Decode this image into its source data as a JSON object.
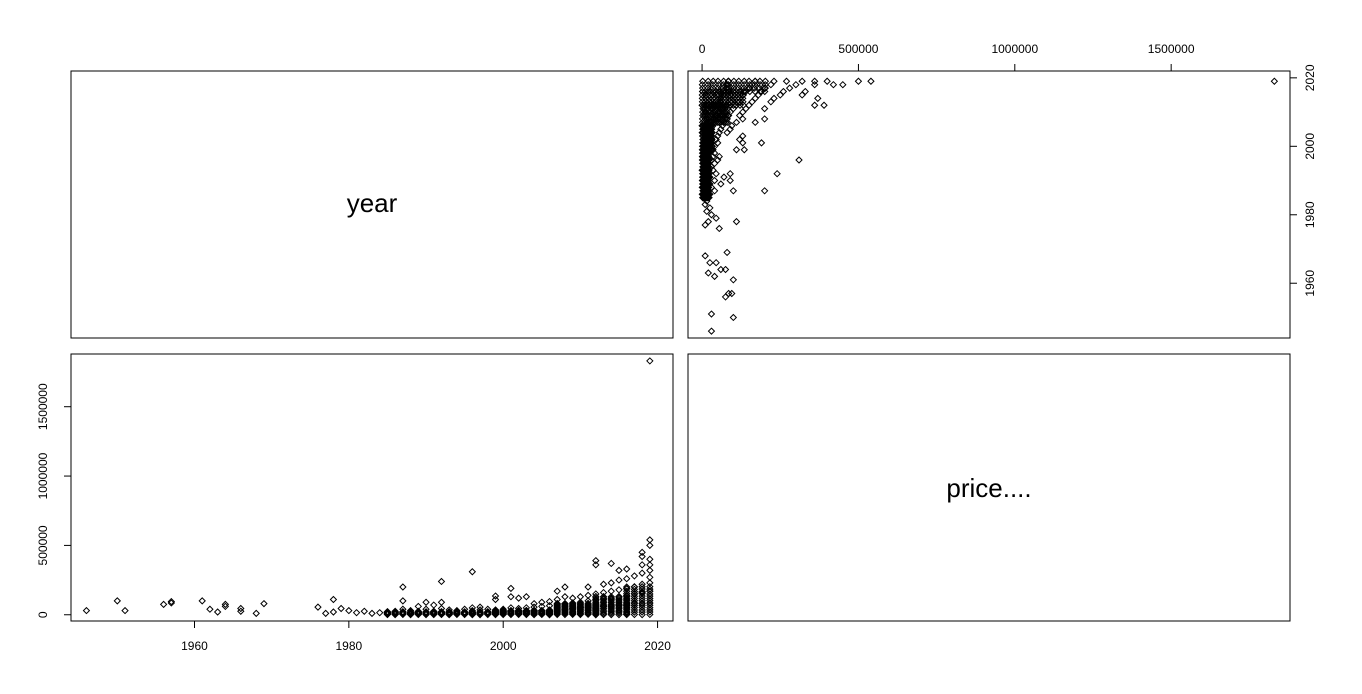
{
  "chart_data": {
    "type": "scatter",
    "variables": [
      "year",
      "price...."
    ],
    "axes": {
      "year": {
        "range": [
          1944,
          2022
        ],
        "ticks": [
          1960,
          1980,
          2000,
          2020
        ],
        "tick_labels": [
          "1960",
          "1980",
          "2000",
          "2020"
        ]
      },
      "price": {
        "range": [
          -45000,
          1880000
        ],
        "ticks": [
          0,
          500000,
          1000000,
          1500000
        ],
        "tick_labels": [
          "0",
          "500000",
          "1000000",
          "1500000"
        ]
      }
    },
    "grid": false,
    "points": [
      [
        1946,
        30000
      ],
      [
        1950,
        100000
      ],
      [
        1951,
        30000
      ],
      [
        1956,
        75000
      ],
      [
        1957,
        85000
      ],
      [
        1957,
        95000
      ],
      [
        1961,
        100000
      ],
      [
        1962,
        40000
      ],
      [
        1963,
        20000
      ],
      [
        1964,
        60000
      ],
      [
        1964,
        75000
      ],
      [
        1966,
        25000
      ],
      [
        1966,
        45000
      ],
      [
        1968,
        10000
      ],
      [
        1969,
        80000
      ],
      [
        1976,
        55000
      ],
      [
        1977,
        10000
      ],
      [
        1978,
        20000
      ],
      [
        1978,
        110000
      ],
      [
        1979,
        45000
      ],
      [
        1980,
        30000
      ],
      [
        1981,
        15000
      ],
      [
        1982,
        25000
      ],
      [
        1983,
        10000
      ],
      [
        1984,
        15000
      ],
      [
        1985,
        20000
      ],
      [
        1986,
        25000
      ],
      [
        1987,
        40000
      ],
      [
        1987,
        100000
      ],
      [
        1987,
        200000
      ],
      [
        1988,
        15000
      ],
      [
        1988,
        30000
      ],
      [
        1989,
        25000
      ],
      [
        1989,
        60000
      ],
      [
        1990,
        10000
      ],
      [
        1990,
        40000
      ],
      [
        1990,
        90000
      ],
      [
        1991,
        25000
      ],
      [
        1991,
        70000
      ],
      [
        1992,
        15000
      ],
      [
        1992,
        45000
      ],
      [
        1992,
        90000
      ],
      [
        1992,
        240000
      ],
      [
        1993,
        20000
      ],
      [
        1993,
        35000
      ],
      [
        1994,
        15000
      ],
      [
        1994,
        30000
      ],
      [
        1995,
        20000
      ],
      [
        1995,
        40000
      ],
      [
        1996,
        15000
      ],
      [
        1996,
        30000
      ],
      [
        1996,
        50000
      ],
      [
        1996,
        310000
      ],
      [
        1997,
        15000
      ],
      [
        1997,
        35000
      ],
      [
        1997,
        55000
      ],
      [
        1998,
        20000
      ],
      [
        1998,
        40000
      ],
      [
        1999,
        15000
      ],
      [
        1999,
        35000
      ],
      [
        1999,
        110000
      ],
      [
        1999,
        135000
      ],
      [
        2000,
        20000
      ],
      [
        2000,
        40000
      ],
      [
        2001,
        25000
      ],
      [
        2001,
        50000
      ],
      [
        2001,
        130000
      ],
      [
        2001,
        190000
      ],
      [
        2002,
        20000
      ],
      [
        2002,
        45000
      ],
      [
        2002,
        120000
      ],
      [
        2003,
        25000
      ],
      [
        2003,
        50000
      ],
      [
        2003,
        130000
      ],
      [
        2004,
        30000
      ],
      [
        2004,
        55000
      ],
      [
        2004,
        80000
      ],
      [
        2005,
        30000
      ],
      [
        2005,
        60000
      ],
      [
        2005,
        90000
      ],
      [
        2006,
        35000
      ],
      [
        2006,
        65000
      ],
      [
        2006,
        95000
      ],
      [
        2007,
        30000
      ],
      [
        2007,
        70000
      ],
      [
        2007,
        110000
      ],
      [
        2007,
        170000
      ],
      [
        2008,
        40000
      ],
      [
        2008,
        80000
      ],
      [
        2008,
        130000
      ],
      [
        2008,
        200000
      ],
      [
        2009,
        45000
      ],
      [
        2009,
        85000
      ],
      [
        2009,
        120000
      ],
      [
        2010,
        50000
      ],
      [
        2010,
        90000
      ],
      [
        2010,
        130000
      ],
      [
        2011,
        50000
      ],
      [
        2011,
        100000
      ],
      [
        2011,
        140000
      ],
      [
        2011,
        200000
      ],
      [
        2012,
        55000
      ],
      [
        2012,
        110000
      ],
      [
        2012,
        150000
      ],
      [
        2012,
        360000
      ],
      [
        2012,
        390000
      ],
      [
        2013,
        60000
      ],
      [
        2013,
        120000
      ],
      [
        2013,
        160000
      ],
      [
        2013,
        220000
      ],
      [
        2014,
        60000
      ],
      [
        2014,
        120000
      ],
      [
        2014,
        170000
      ],
      [
        2014,
        230000
      ],
      [
        2014,
        370000
      ],
      [
        2015,
        70000
      ],
      [
        2015,
        130000
      ],
      [
        2015,
        180000
      ],
      [
        2015,
        250000
      ],
      [
        2015,
        320000
      ],
      [
        2016,
        75000
      ],
      [
        2016,
        140000
      ],
      [
        2016,
        190000
      ],
      [
        2016,
        260000
      ],
      [
        2016,
        330000
      ],
      [
        2017,
        80000
      ],
      [
        2017,
        150000
      ],
      [
        2017,
        200000
      ],
      [
        2017,
        280000
      ],
      [
        2018,
        80000
      ],
      [
        2018,
        160000
      ],
      [
        2018,
        220000
      ],
      [
        2018,
        300000
      ],
      [
        2018,
        360000
      ],
      [
        2018,
        420000
      ],
      [
        2018,
        450000
      ],
      [
        2019,
        85000
      ],
      [
        2019,
        170000
      ],
      [
        2019,
        230000
      ],
      [
        2019,
        270000
      ],
      [
        2019,
        320000
      ],
      [
        2019,
        360000
      ],
      [
        2019,
        400000
      ],
      [
        2019,
        500000
      ],
      [
        2019,
        540000
      ],
      [
        2019,
        1830000
      ]
    ],
    "dense_bands": [
      {
        "year_min": 1985,
        "year_max": 1998,
        "price_max": 20000
      },
      {
        "year_min": 1999,
        "year_max": 2006,
        "price_max": 30000
      },
      {
        "year_min": 2007,
        "year_max": 2012,
        "price_max": 80000
      },
      {
        "year_min": 2012,
        "year_max": 2016,
        "price_max": 130000
      },
      {
        "year_min": 2016,
        "year_max": 2019,
        "price_max": 200000
      }
    ]
  }
}
